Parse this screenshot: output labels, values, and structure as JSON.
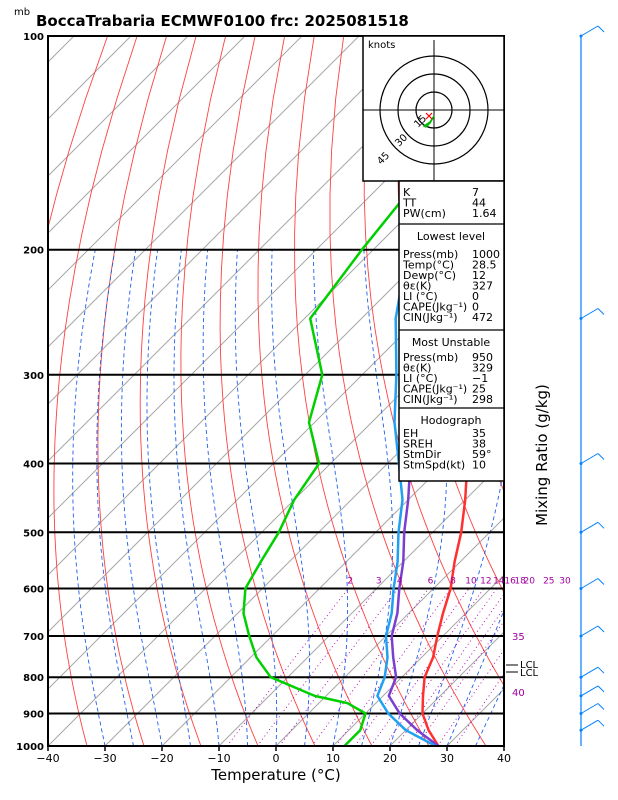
{
  "header": {
    "unit_label": "mb",
    "title": "BoccaTrabaria ECMWF0100 frc: 2025081518"
  },
  "axes": {
    "x_label": "Temperature (°C)",
    "right_label": "Mixing Ratio (g/kg)",
    "temp_ticks": [
      "−40",
      "−30",
      "−20",
      "−10",
      "0",
      "10",
      "20",
      "30",
      "40"
    ],
    "pressure_labels": [
      "100",
      "200",
      "300",
      "400",
      "500",
      "600",
      "700",
      "800",
      "900",
      "1000"
    ],
    "mixing_ratio_labels": [
      "2",
      "3",
      "4",
      "6",
      "8",
      "10",
      "12",
      "14",
      "16",
      "18",
      "20",
      "25",
      "30"
    ],
    "theta_labels": [
      "35",
      "40"
    ],
    "lcl_labels": [
      "LCL",
      "LCL"
    ]
  },
  "hodograph": {
    "unit": "knots",
    "ring_labels": [
      "15",
      "30",
      "45"
    ]
  },
  "indices": {
    "top": [
      {
        "k": "K",
        "v": "7"
      },
      {
        "k": "TT",
        "v": "44"
      },
      {
        "k": "PW(cm)",
        "v": "1.64"
      }
    ],
    "lowest": {
      "header": "Lowest level",
      "rows": [
        {
          "k": "Press(mb)",
          "v": "1000"
        },
        {
          "k": "Temp(°C)",
          "v": "28.5"
        },
        {
          "k": "Dewp(°C)",
          "v": "12"
        },
        {
          "k": "θε(K)",
          "v": "327"
        },
        {
          "k": "LI (°C)",
          "v": "0"
        },
        {
          "k": "CAPE(Jkg⁻¹)",
          "v": "0"
        },
        {
          "k": "CIN(Jkg⁻¹)",
          "v": "472"
        }
      ]
    },
    "unstable": {
      "header": "Most Unstable",
      "rows": [
        {
          "k": "Press(mb)",
          "v": "950"
        },
        {
          "k": "θε(K)",
          "v": "329"
        },
        {
          "k": "LI (°C)",
          "v": "−1"
        },
        {
          "k": "CAPE(Jkg⁻¹)",
          "v": "25"
        },
        {
          "k": "CIN(Jkg⁻¹)",
          "v": "298"
        }
      ]
    },
    "hodo": {
      "header": "Hodograph",
      "rows": [
        {
          "k": "EH",
          "v": "35"
        },
        {
          "k": "SREH",
          "v": "38"
        },
        {
          "k": "StmDir",
          "v": "59°"
        },
        {
          "k": "StmSpd(kt)",
          "v": "10"
        }
      ]
    }
  },
  "chart_data": {
    "type": "line",
    "title": "BoccaTrabaria ECMWF0100 frc: 2025081518",
    "xlabel": "Temperature (°C)",
    "ylabel": "mb",
    "xlim": [
      -40,
      40
    ],
    "ylim": [
      1000,
      100
    ],
    "y_scale": "log-pressure, skewed temperature",
    "series": [
      {
        "name": "temperature",
        "color": "#ff3030",
        "points": [
          [
            1000,
            28.5
          ],
          [
            950,
            24
          ],
          [
            900,
            20
          ],
          [
            850,
            17
          ],
          [
            800,
            14
          ],
          [
            750,
            12
          ],
          [
            700,
            9
          ],
          [
            650,
            6
          ],
          [
            600,
            3
          ],
          [
            550,
            -1
          ],
          [
            500,
            -5
          ],
          [
            450,
            -10
          ],
          [
            400,
            -16
          ],
          [
            350,
            -23
          ],
          [
            300,
            -31
          ],
          [
            260,
            -39
          ],
          [
            250,
            -40
          ],
          [
            200,
            -47
          ],
          [
            150,
            -54
          ],
          [
            100,
            -60
          ]
        ]
      },
      {
        "name": "dewpoint",
        "color": "#00d000",
        "points": [
          [
            1000,
            12
          ],
          [
            950,
            12
          ],
          [
            900,
            10
          ],
          [
            870,
            5
          ],
          [
            850,
            -2
          ],
          [
            800,
            -13
          ],
          [
            750,
            -19
          ],
          [
            700,
            -24
          ],
          [
            650,
            -29
          ],
          [
            600,
            -33
          ],
          [
            550,
            -35
          ],
          [
            500,
            -37
          ],
          [
            450,
            -40
          ],
          [
            400,
            -42
          ],
          [
            350,
            -51
          ],
          [
            300,
            -57
          ],
          [
            250,
            -69
          ],
          [
            200,
            -72
          ],
          [
            150,
            -75
          ],
          [
            100,
            -78
          ]
        ]
      },
      {
        "name": "parcel",
        "color": "#7a3fd0",
        "points": [
          [
            1000,
            28.5
          ],
          [
            950,
            22
          ],
          [
            900,
            16
          ],
          [
            850,
            11
          ],
          [
            800,
            9
          ],
          [
            750,
            5
          ],
          [
            700,
            1
          ],
          [
            650,
            -2
          ],
          [
            600,
            -6
          ],
          [
            550,
            -10
          ],
          [
            500,
            -15
          ],
          [
            450,
            -20
          ],
          [
            400,
            -26
          ],
          [
            350,
            -33
          ],
          [
            300,
            -41
          ],
          [
            250,
            -50
          ],
          [
            200,
            -60
          ],
          [
            150,
            -72
          ],
          [
            100,
            -84
          ]
        ]
      },
      {
        "name": "profile2",
        "color": "#20a0f0",
        "points": [
          [
            1000,
            28
          ],
          [
            950,
            20
          ],
          [
            900,
            14
          ],
          [
            850,
            9
          ],
          [
            800,
            7
          ],
          [
            750,
            4
          ],
          [
            700,
            0
          ],
          [
            650,
            -3
          ],
          [
            600,
            -7
          ],
          [
            550,
            -11
          ],
          [
            500,
            -16
          ],
          [
            450,
            -21
          ],
          [
            400,
            -28
          ],
          [
            350,
            -36
          ],
          [
            300,
            -44
          ],
          [
            250,
            -54
          ],
          [
            200,
            -64
          ],
          [
            150,
            -76
          ],
          [
            100,
            -88
          ]
        ]
      }
    ],
    "wind_barbs_speed_kt": [
      5,
      10,
      15,
      10,
      10,
      10,
      10,
      10,
      15,
      10
    ]
  }
}
